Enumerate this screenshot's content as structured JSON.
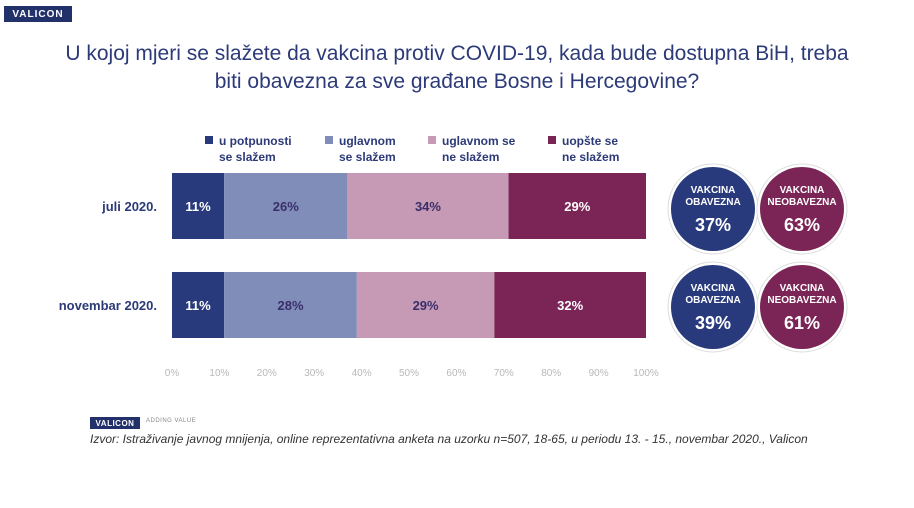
{
  "brand": {
    "logo_text": "VALICON",
    "tagline": "ADDING VALUE"
  },
  "title_lines": [
    "U kojoj mjeri se slažete da vakcina protiv COVID-19, kada bude dostupna BiH, treba",
    "biti obavezna za sve građane Bosne i Hercegovine?"
  ],
  "legend": [
    {
      "label": "u potpunosti\nse slažem",
      "color": "#283a7c"
    },
    {
      "label": "uglavnom\nse slažem",
      "color": "#7f8db8"
    },
    {
      "label": "uglavnom se\nne slažem",
      "color": "#c69ab4"
    },
    {
      "label": "uopšte se\nne slažem",
      "color": "#7b2556"
    }
  ],
  "chart_data": {
    "type": "bar",
    "orientation": "horizontal",
    "stacked": true,
    "categories": [
      "juli 2020.",
      "novembar 2020."
    ],
    "series": [
      {
        "name": "u potpunosti se slažem",
        "values": [
          11,
          11
        ]
      },
      {
        "name": "uglavnom se slažem",
        "values": [
          26,
          28
        ]
      },
      {
        "name": "uglavnom se ne slažem",
        "values": [
          34,
          29
        ]
      },
      {
        "name": "uopšte se ne slažem",
        "values": [
          29,
          32
        ]
      }
    ],
    "xlim": [
      0,
      100
    ],
    "xticks": [
      "0%",
      "10%",
      "20%",
      "30%",
      "40%",
      "50%",
      "60%",
      "70%",
      "80%",
      "90%",
      "100%"
    ],
    "legend_position": "top",
    "grid": false
  },
  "summary": [
    {
      "obavezna_label": "VAKCINA\nOBAVEZNA",
      "obavezna_value": "37%",
      "neobavezna_label": "VAKCINA\nNEOBAVEZNA",
      "neobavezna_value": "63%"
    },
    {
      "obavezna_label": "VAKCINA\nOBAVEZNA",
      "obavezna_value": "39%",
      "neobavezna_label": "VAKCINA\nNEOBAVEZNA",
      "neobavezna_value": "61%"
    }
  ],
  "summary_colors": {
    "obavezna": "#283a7c",
    "neobavezna": "#7b2556"
  },
  "source": "Izvor: Istraživanje javnog mnijenja, online reprezentativna anketa na uzorku n=507, 18-65, u periodu 13. - 15., novembar 2020., Valicon"
}
